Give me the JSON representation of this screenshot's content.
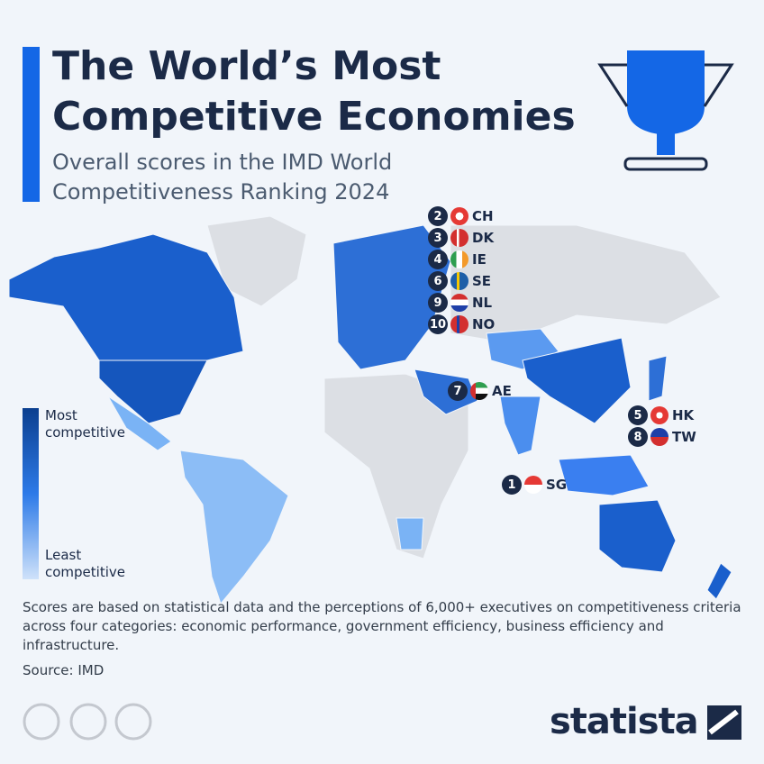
{
  "header": {
    "title": "The World’s Most Competitive Economies",
    "subtitle": "Overall scores in the IMD World Competitiveness Ranking 2024"
  },
  "legend": {
    "high": "Most competitive",
    "low": "Least competitive"
  },
  "rankings": [
    {
      "rank": "1",
      "code": "SG"
    },
    {
      "rank": "2",
      "code": "CH"
    },
    {
      "rank": "3",
      "code": "DK"
    },
    {
      "rank": "4",
      "code": "IE"
    },
    {
      "rank": "5",
      "code": "HK"
    },
    {
      "rank": "6",
      "code": "SE"
    },
    {
      "rank": "7",
      "code": "AE"
    },
    {
      "rank": "8",
      "code": "TW"
    },
    {
      "rank": "9",
      "code": "NL"
    },
    {
      "rank": "10",
      "code": "NO"
    }
  ],
  "footer": {
    "note": "Scores are based on statistical data and the perceptions of 6,000+ executives on competitiveness criteria across four categories: economic performance, government efficiency, business efficiency and infrastructure.",
    "source": "Source: IMD",
    "logo": "statista"
  }
}
